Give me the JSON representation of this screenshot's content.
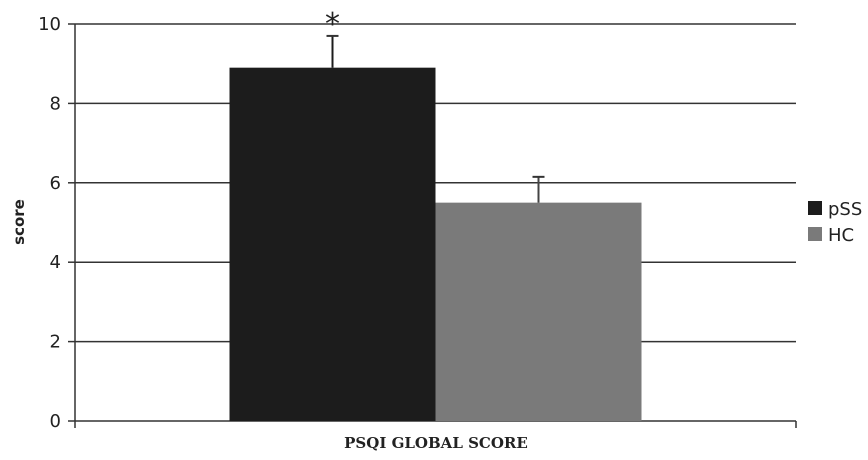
{
  "chart_data": {
    "type": "bar",
    "title": "",
    "xlabel": "PSQI GLOBAL SCORE",
    "ylabel": "score",
    "ylim": [
      0,
      10
    ],
    "yticks": [
      0,
      2,
      4,
      6,
      8,
      10
    ],
    "grid": true,
    "legend_position": "right",
    "categories": [
      "PSQI GLOBAL SCORE"
    ],
    "series": [
      {
        "name": "pSS",
        "values": [
          8.9
        ],
        "error": [
          0.8
        ],
        "color": "#1c1c1c",
        "annotation": "*"
      },
      {
        "name": "HC",
        "values": [
          5.5
        ],
        "error": [
          0.65
        ],
        "color": "#7a7a7a",
        "annotation": ""
      }
    ]
  }
}
